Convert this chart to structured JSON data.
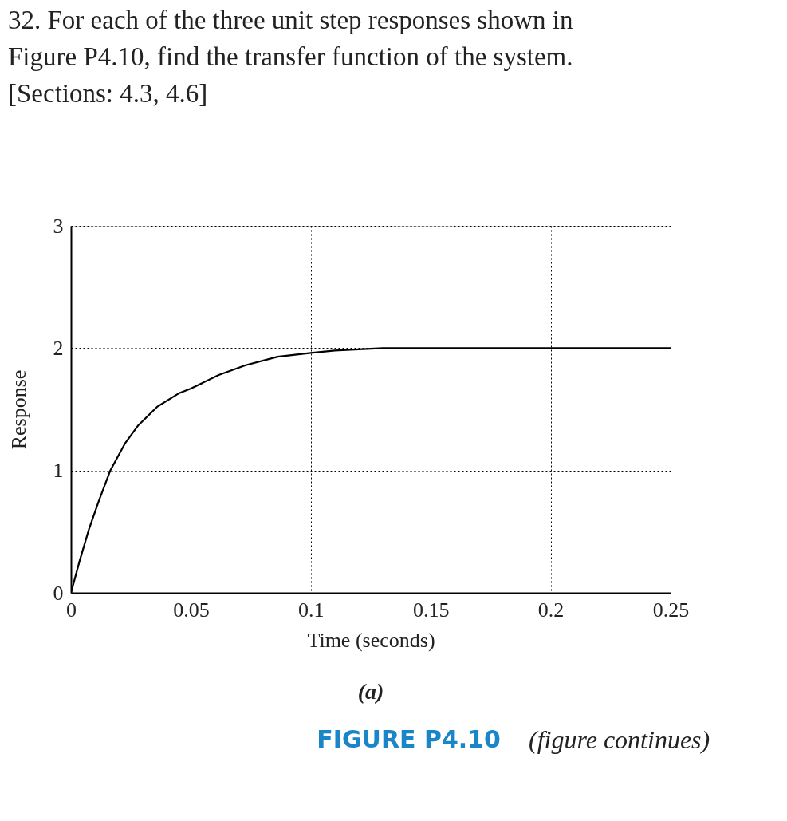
{
  "chart_data": {
    "type": "line",
    "title": "32. For each of the three unit step responses shown in Figure P4.10, find the transfer function of the system. [Sections: 4.3, 4.6]",
    "xlabel": "Time (seconds)",
    "ylabel": "Response",
    "annotations": [
      "(a)",
      "FIGURE P4.10",
      "(figure continues)"
    ],
    "series": [
      {
        "color": "#000000",
        "x": [
          0,
          0.0036,
          0.0075,
          0.0114,
          0.0164,
          0.0225,
          0.0281,
          0.0359,
          0.0449,
          0.05,
          0.0616,
          0.0728,
          0.0862,
          0.1,
          0.11,
          0.12,
          0.13,
          0.25
        ],
        "values": [
          0,
          0.26,
          0.52,
          0.74,
          1.0,
          1.22,
          1.37,
          1.52,
          1.63,
          1.67,
          1.78,
          1.86,
          1.93,
          1.96,
          1.98,
          1.99,
          2.0,
          2.0
        ]
      }
    ],
    "xlim": [
      0,
      0.25
    ],
    "xticks": [
      0,
      0.05,
      0.1,
      0.15,
      0.2,
      0.25
    ],
    "ylim": [
      0,
      3
    ],
    "yticks": [
      0,
      1,
      2,
      3
    ],
    "grid": true,
    "marker": "none",
    "line_style": "solid"
  }
}
